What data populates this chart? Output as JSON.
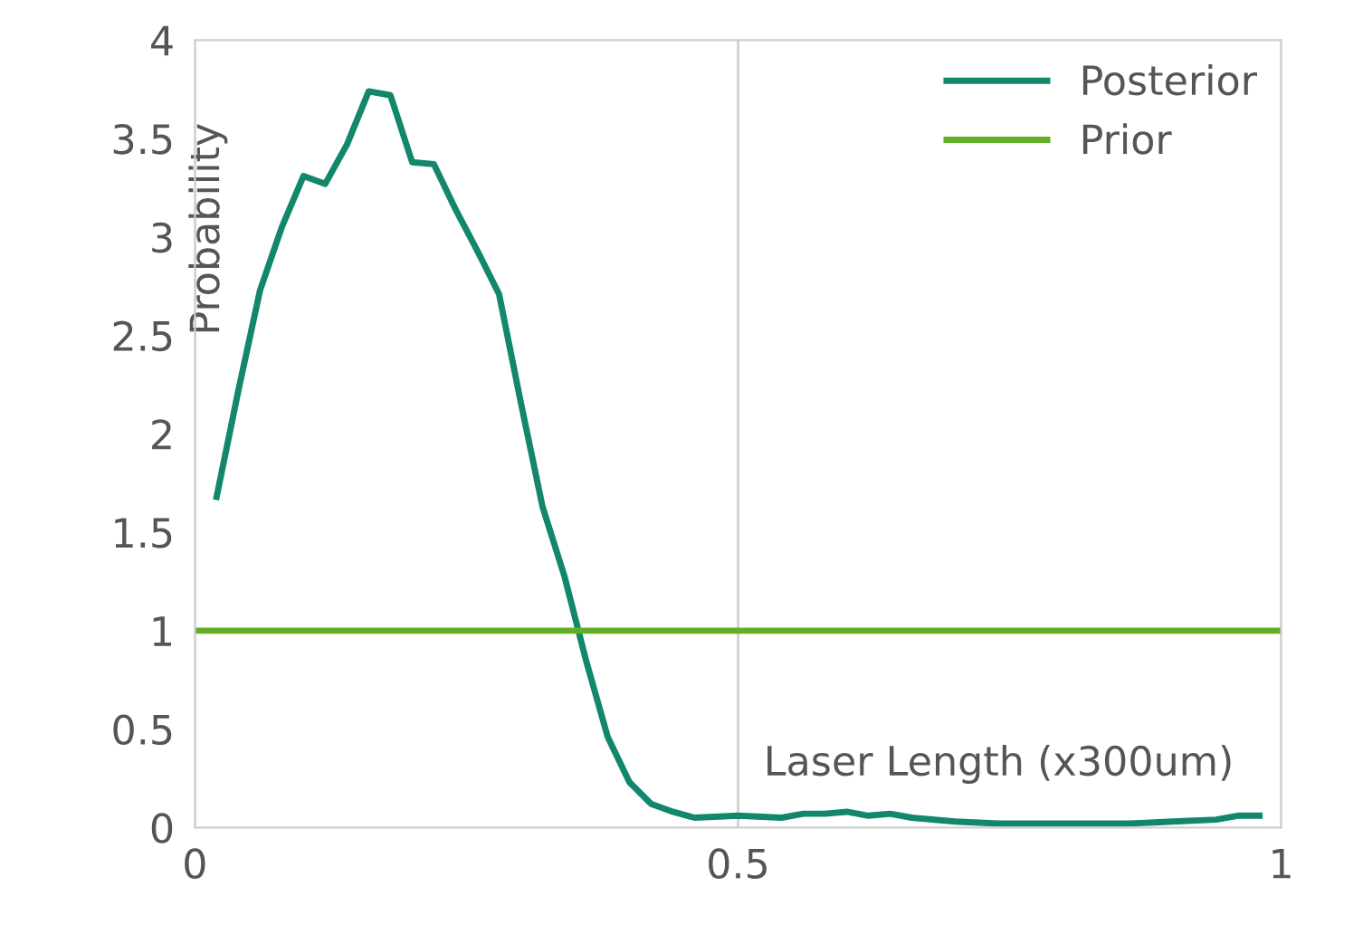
{
  "chart_data": {
    "type": "line",
    "xlabel": "Laser Length (x300um)",
    "ylabel": "Probability",
    "xlim": [
      0,
      1
    ],
    "ylim": [
      0,
      4
    ],
    "xticks": [
      0,
      0.5,
      1
    ],
    "yticks": [
      0,
      0.5,
      1,
      1.5,
      2,
      2.5,
      3,
      3.5,
      4
    ],
    "grid": "x",
    "legend": "top right",
    "marker": "none",
    "line_style": "solid",
    "series": [
      {
        "name": "Posterior",
        "color": "#12876b",
        "x": [
          0.02,
          0.04,
          0.06,
          0.08,
          0.1,
          0.12,
          0.14,
          0.16,
          0.18,
          0.2,
          0.22,
          0.24,
          0.26,
          0.28,
          0.3,
          0.32,
          0.34,
          0.36,
          0.38,
          0.4,
          0.42,
          0.44,
          0.46,
          0.5,
          0.54,
          0.56,
          0.58,
          0.6,
          0.62,
          0.64,
          0.66,
          0.7,
          0.74,
          0.8,
          0.86,
          0.9,
          0.94,
          0.96,
          0.98
        ],
        "values": [
          1.68,
          2.22,
          2.73,
          3.05,
          3.31,
          3.27,
          3.47,
          3.74,
          3.72,
          3.38,
          3.37,
          3.14,
          2.93,
          2.71,
          2.16,
          1.63,
          1.28,
          0.85,
          0.46,
          0.23,
          0.12,
          0.08,
          0.05,
          0.06,
          0.05,
          0.07,
          0.07,
          0.08,
          0.06,
          0.07,
          0.05,
          0.03,
          0.02,
          0.02,
          0.02,
          0.03,
          0.04,
          0.06,
          0.06
        ]
      },
      {
        "name": "Prior",
        "color": "#62ae27",
        "x": [
          0,
          1
        ],
        "values": [
          1,
          1
        ]
      }
    ]
  }
}
